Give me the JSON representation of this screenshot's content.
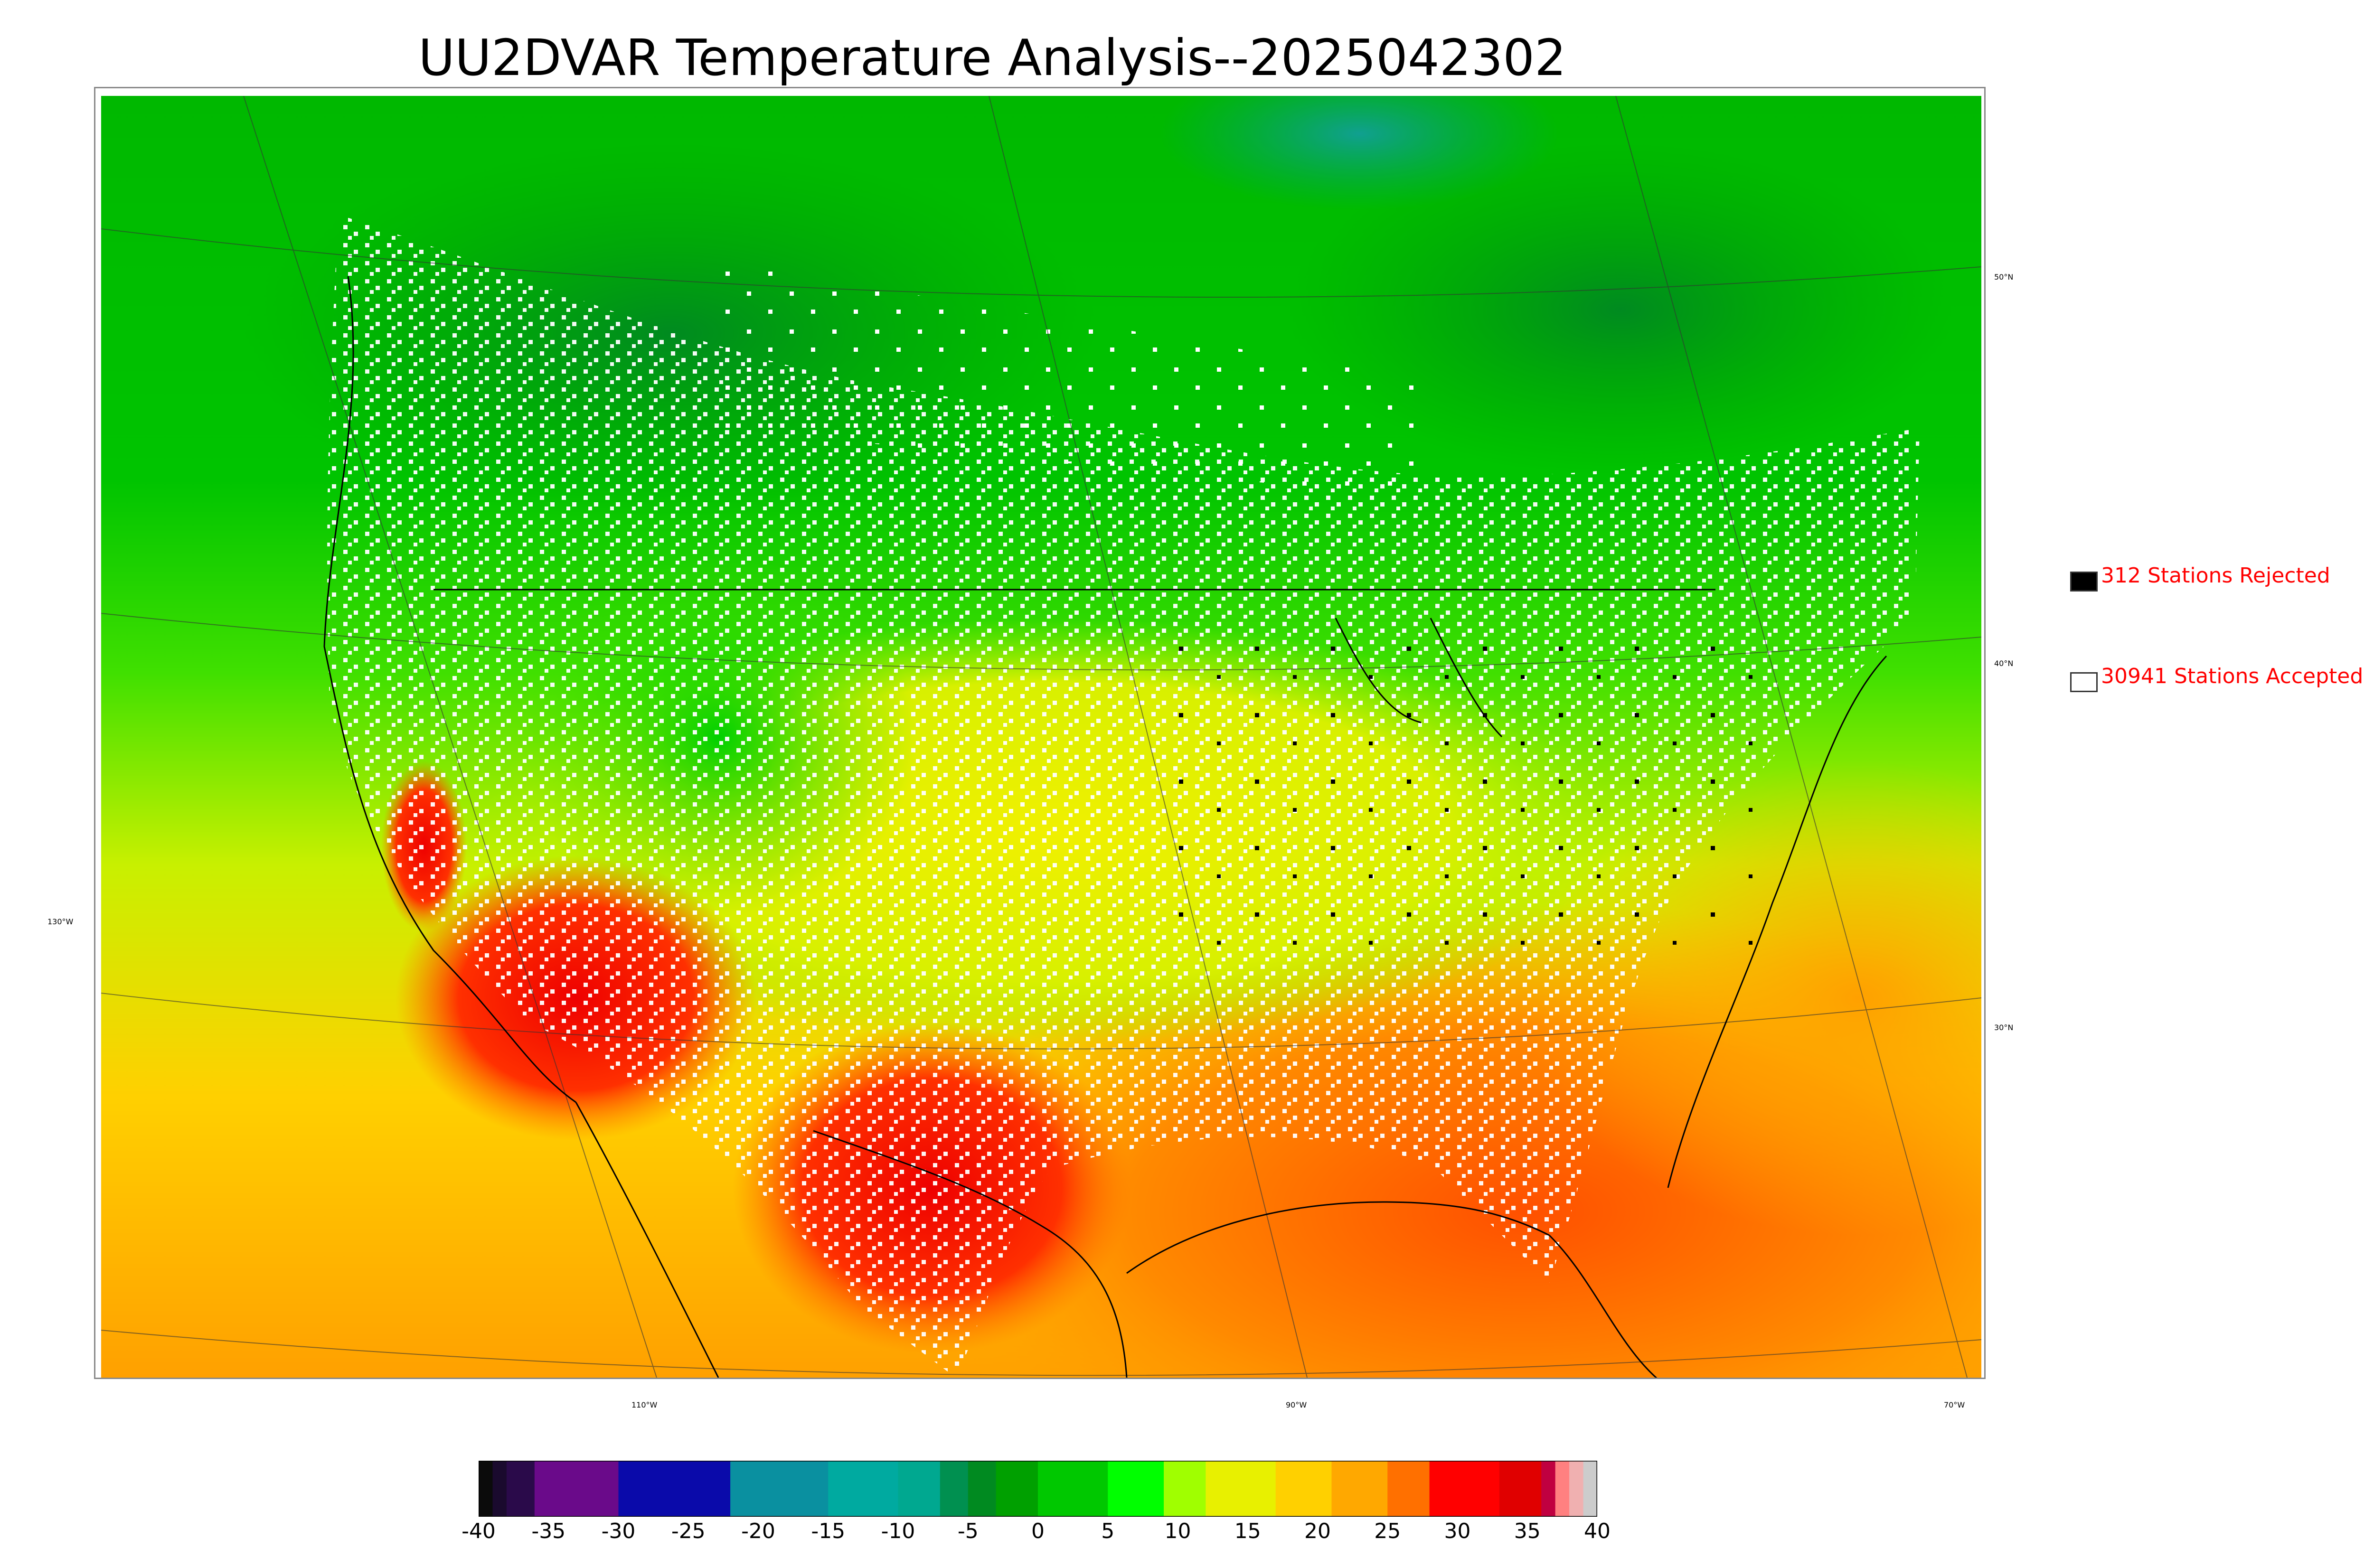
{
  "title": "UU2DVAR Temperature Analysis--2025042302",
  "axis_labels": {
    "lat": [
      "50°N",
      "40°N",
      "30°N"
    ],
    "lon": [
      "130°W",
      "110°W",
      "90°W",
      "70°W"
    ]
  },
  "legend": {
    "rejected": {
      "label": "312 Stations Rejected",
      "color": "#000000"
    },
    "accepted": {
      "label": "30941 Stations Accepted",
      "color": "#ffffff"
    }
  },
  "colorbar": {
    "ticks": [
      "-40",
      "-35",
      "-30",
      "-25",
      "-20",
      "-15",
      "-10",
      "-5",
      "0",
      "5",
      "10",
      "15",
      "20",
      "25",
      "30",
      "35",
      "40"
    ],
    "segments": [
      {
        "from": -40,
        "to": -39,
        "color": "#0b0b0b"
      },
      {
        "from": -39,
        "to": -38,
        "color": "#1a0a2e"
      },
      {
        "from": -38,
        "to": -36,
        "color": "#2a0a4a"
      },
      {
        "from": -36,
        "to": -30,
        "color": "#6a0a8a"
      },
      {
        "from": -30,
        "to": -22,
        "color": "#0a0aaa"
      },
      {
        "from": -22,
        "to": -15,
        "color": "#0a90a0"
      },
      {
        "from": -15,
        "to": -10,
        "color": "#00aaa0"
      },
      {
        "from": -10,
        "to": -7,
        "color": "#00a890"
      },
      {
        "from": -7,
        "to": -5,
        "color": "#009050"
      },
      {
        "from": -5,
        "to": -3,
        "color": "#008a20"
      },
      {
        "from": -3,
        "to": 0,
        "color": "#00a000"
      },
      {
        "from": 0,
        "to": 5,
        "color": "#00c800"
      },
      {
        "from": 5,
        "to": 9,
        "color": "#00ff00"
      },
      {
        "from": 9,
        "to": 12,
        "color": "#a0ff00"
      },
      {
        "from": 12,
        "to": 17,
        "color": "#e8f000"
      },
      {
        "from": 17,
        "to": 21,
        "color": "#ffd000"
      },
      {
        "from": 21,
        "to": 25,
        "color": "#ffa800"
      },
      {
        "from": 25,
        "to": 28,
        "color": "#ff7000"
      },
      {
        "from": 28,
        "to": 33,
        "color": "#ff0000"
      },
      {
        "from": 33,
        "to": 36,
        "color": "#e00000"
      },
      {
        "from": 36,
        "to": 37,
        "color": "#c00040"
      },
      {
        "from": 37,
        "to": 38,
        "color": "#ff8080"
      },
      {
        "from": 38,
        "to": 39,
        "color": "#f0b0b0"
      },
      {
        "from": 39,
        "to": 40,
        "color": "#cccccc"
      }
    ]
  }
}
